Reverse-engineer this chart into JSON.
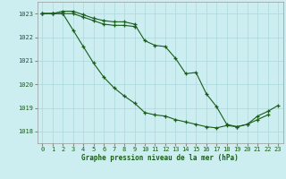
{
  "background_color": "#cceef0",
  "grid_color": "#aad8dc",
  "line_color": "#1a5c1a",
  "text_color": "#1a5c1a",
  "xlabel": "Graphe pression niveau de la mer (hPa)",
  "hours": [
    0,
    1,
    2,
    3,
    4,
    5,
    6,
    7,
    8,
    9,
    10,
    11,
    12,
    13,
    14,
    15,
    16,
    17,
    18,
    19,
    20,
    21,
    22,
    23
  ],
  "series1": [
    1023.0,
    1023.0,
    1023.0,
    1023.0,
    1022.85,
    1022.7,
    1022.55,
    1022.5,
    1022.5,
    1022.45,
    null,
    null,
    null,
    null,
    null,
    null,
    null,
    null,
    null,
    null,
    null,
    null,
    null,
    null
  ],
  "series2": [
    1023.0,
    1023.0,
    1023.1,
    1023.1,
    1022.95,
    1022.8,
    1022.7,
    1022.65,
    1022.65,
    1022.55,
    1021.85,
    1021.65,
    1021.6,
    1021.1,
    1020.45,
    1020.5,
    1019.6,
    1019.05,
    1018.3,
    1018.2,
    1018.3,
    1018.65,
    1018.85,
    1019.1
  ],
  "series3": [
    1023.0,
    1023.0,
    1023.0,
    1022.3,
    1021.6,
    1020.9,
    1020.3,
    1019.85,
    1019.5,
    1019.2,
    1018.8,
    1018.7,
    1018.65,
    1018.5,
    1018.4,
    1018.3,
    1018.2,
    1018.15,
    1018.25,
    1018.2,
    1018.3,
    1018.5,
    1018.7,
    null
  ],
  "ylim": [
    1017.5,
    1023.5
  ],
  "yticks": [
    1018,
    1019,
    1020,
    1021,
    1022,
    1023
  ],
  "xticks": [
    0,
    1,
    2,
    3,
    4,
    5,
    6,
    7,
    8,
    9,
    10,
    11,
    12,
    13,
    14,
    15,
    16,
    17,
    18,
    19,
    20,
    21,
    22,
    23
  ]
}
